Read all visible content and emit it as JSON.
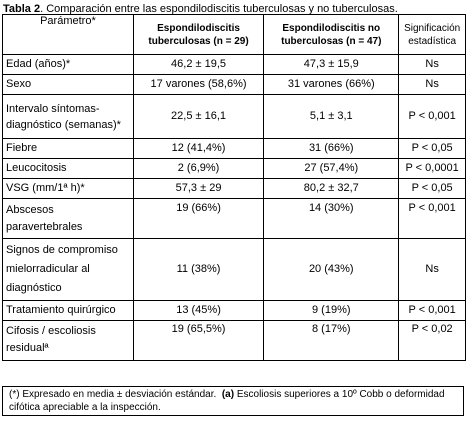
{
  "caption": {
    "label": "Tabla 2",
    "text": ". Comparación entre las espondilodiscitis tuberculosas y no tuberculosas."
  },
  "table": {
    "headers": {
      "param": "Parámetro*",
      "tb_line1": "Espondilodiscitis",
      "tb_line2": "tuberculosas (n = 29)",
      "notb_line1": "Espondilodiscitis no",
      "notb_line2": "tuberculosas (n = 47)",
      "sig_line1": "Significación",
      "sig_line2": "estadística"
    },
    "rows": [
      {
        "param": "Edad (años)*",
        "tb": "46,2 ± 19,5",
        "notb": "47,3 ± 15,9",
        "sig": "Ns"
      },
      {
        "param": "Sexo",
        "tb": "17 varones (58,6%)",
        "notb": "31 varones (66%)",
        "sig": "Ns"
      },
      {
        "param": "Intervalo síntomas-diagnóstico (semanas)*",
        "tb": "22,5 ± 16,1",
        "notb": "5,1 ± 3,1",
        "sig": "P < 0,001"
      },
      {
        "param": "Fiebre",
        "tb": "12 (41,4%)",
        "notb": "31 (66%)",
        "sig": "P < 0,05"
      },
      {
        "param": "Leucocitosis",
        "tb": "2 (6,9%)",
        "notb": "27 (57,4%)",
        "sig": "P < 0,0001"
      },
      {
        "param": "VSG (mm/1ª h)*",
        "tb": "57,3 ± 29",
        "notb": "80,2 ± 32,7",
        "sig": "P < 0,05"
      },
      {
        "param": "Abscesos paravertebrales",
        "tb": "19 (66%)",
        "notb": "14 (30%)",
        "sig": "P < 0,001"
      },
      {
        "param": "Signos de compromiso mielorradicular al diagnóstico",
        "tb": "11 (38%)",
        "notb": "20 (43%)",
        "sig": "Ns"
      },
      {
        "param": "Tratamiento quirúrgico",
        "tb": "13 (45%)",
        "notb": "9 (19%)",
        "sig": "P < 0,001"
      },
      {
        "param": "Cifosis / escoliosis residualª",
        "tb": "19 (65,5%)",
        "notb": "8 (17%)",
        "sig": "P < 0,02"
      }
    ]
  },
  "footnote": {
    "star": "(*) Expresado en media ± desviación estándar.",
    "a_label": "(a)",
    "a_text": " Escoliosis superiores a 10º Cobb o deformidad cifótica apreciable a la inspección."
  }
}
